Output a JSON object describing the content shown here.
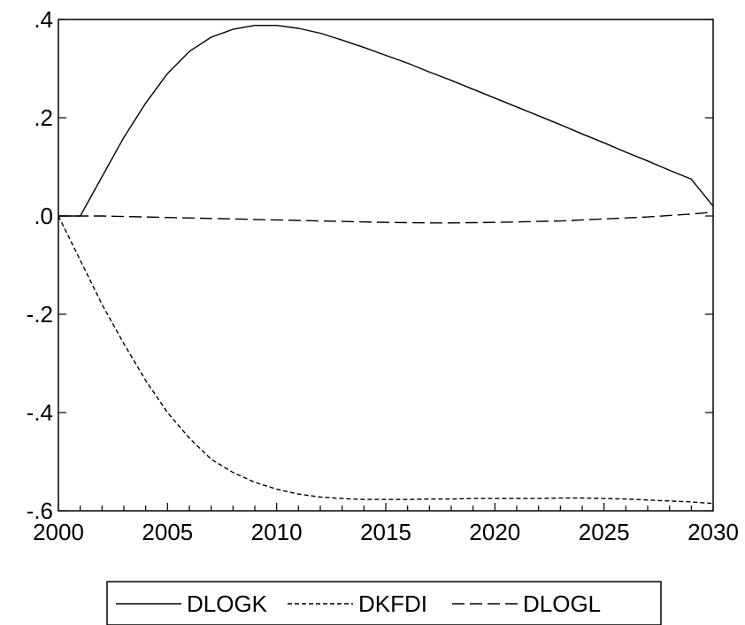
{
  "chart_data": {
    "type": "line",
    "title": "",
    "xlabel": "",
    "ylabel": "",
    "xlim": [
      2000,
      2030
    ],
    "ylim": [
      -0.6,
      0.4
    ],
    "grid": false,
    "legend_position": "bottom-center",
    "x_ticks": [
      {
        "value": 2000,
        "label": "2000"
      },
      {
        "value": 2005,
        "label": "2005"
      },
      {
        "value": 2010,
        "label": "2010"
      },
      {
        "value": 2015,
        "label": "2015"
      },
      {
        "value": 2020,
        "label": "2020"
      },
      {
        "value": 2025,
        "label": "2025"
      },
      {
        "value": 2030,
        "label": "2030"
      }
    ],
    "y_ticks": [
      {
        "value": 0.4,
        "label": ".4"
      },
      {
        "value": 0.2,
        "label": ".2"
      },
      {
        "value": 0.0,
        "label": ".0"
      },
      {
        "value": -0.2,
        "label": "-.2"
      },
      {
        "value": -0.4,
        "label": "-.4"
      },
      {
        "value": -0.6,
        "label": "-.6"
      }
    ],
    "x": [
      2000,
      2001,
      2002,
      2003,
      2004,
      2005,
      2006,
      2007,
      2008,
      2009,
      2010,
      2011,
      2012,
      2013,
      2014,
      2015,
      2016,
      2017,
      2018,
      2019,
      2020,
      2021,
      2022,
      2023,
      2024,
      2025,
      2026,
      2027,
      2028,
      2029,
      2030
    ],
    "series": [
      {
        "name": "DLOGK",
        "style": "solid",
        "color": "#000000",
        "values": [
          0.0,
          0.0,
          0.08,
          0.16,
          0.23,
          0.29,
          0.335,
          0.364,
          0.38,
          0.388,
          0.388,
          0.382,
          0.372,
          0.358,
          0.343,
          0.327,
          0.311,
          0.293,
          0.276,
          0.258,
          0.24,
          0.222,
          0.204,
          0.186,
          0.167,
          0.149,
          0.13,
          0.112,
          0.093,
          0.075,
          0.02
        ]
      },
      {
        "name": "DKFDI",
        "style": "short-dash",
        "color": "#000000",
        "values": [
          0.0,
          -0.09,
          -0.18,
          -0.26,
          -0.335,
          -0.4,
          -0.452,
          -0.495,
          -0.522,
          -0.542,
          -0.556,
          -0.566,
          -0.572,
          -0.575,
          -0.577,
          -0.577,
          -0.577,
          -0.576,
          -0.576,
          -0.575,
          -0.575,
          -0.575,
          -0.575,
          -0.574,
          -0.574,
          -0.575,
          -0.576,
          -0.578,
          -0.58,
          -0.582,
          -0.585
        ]
      },
      {
        "name": "DLOGL",
        "style": "long-dash",
        "color": "#000000",
        "values": [
          0.0,
          0.0,
          0.0,
          -0.001,
          -0.002,
          -0.003,
          -0.004,
          -0.005,
          -0.006,
          -0.007,
          -0.008,
          -0.009,
          -0.01,
          -0.011,
          -0.012,
          -0.013,
          -0.0135,
          -0.014,
          -0.014,
          -0.0135,
          -0.013,
          -0.012,
          -0.011,
          -0.01,
          -0.008,
          -0.006,
          -0.004,
          -0.002,
          0.001,
          0.004,
          0.008
        ]
      }
    ]
  }
}
